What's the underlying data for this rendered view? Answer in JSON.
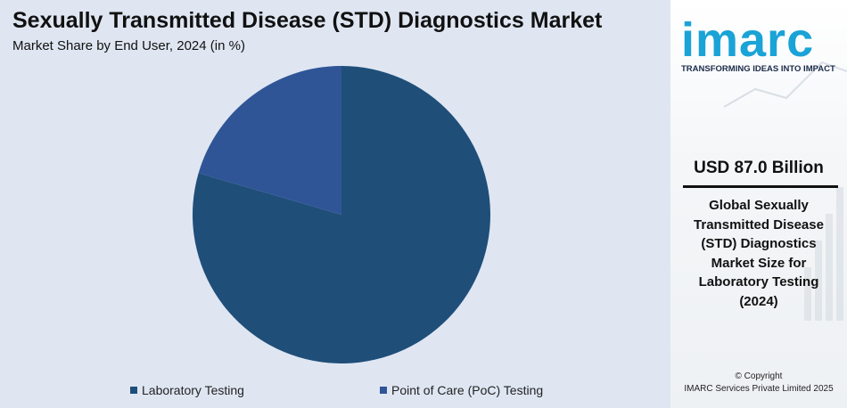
{
  "header": {
    "title": "Sexually Transmitted Disease (STD) Diagnostics Market",
    "subtitle": "Market Share by End User, 2024 (in %)"
  },
  "chart_data": {
    "type": "pie",
    "categories": [
      "Laboratory Testing",
      "Point of Care (PoC) Testing"
    ],
    "values": [
      79.5,
      20.5
    ],
    "colors": [
      "#1f4e79",
      "#2f5597"
    ],
    "legend_position": "bottom",
    "start_angle_deg": 0,
    "direction": "clockwise"
  },
  "side_panel": {
    "logo_text": "imarc",
    "tagline": "TRANSFORMING IDEAS INTO IMPACT",
    "stat_value": "USD 87.0 Billion",
    "stat_desc_lines": [
      "Global Sexually",
      "Transmitted Disease",
      "(STD) Diagnostics",
      "Market Size for",
      "Laboratory Testing",
      "(2024)"
    ],
    "copyright_line1": "© Copyright",
    "copyright_line2": "IMARC Services Private Limited 2025"
  },
  "colors": {
    "panel_bg": "#dfe6f2",
    "logo": "#1aa3d6"
  }
}
